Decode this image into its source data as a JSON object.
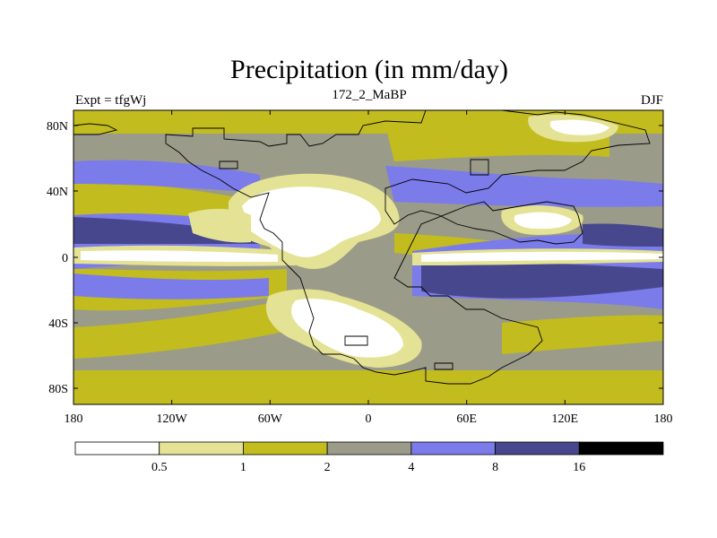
{
  "title": "Precipitation (in mm/day)",
  "left_label": "Expt = tfgWj",
  "center_label": "172_2_MaBP",
  "right_label": "DJF",
  "lat_ticks": [
    "80N",
    "40N",
    "0",
    "40S",
    "80S"
  ],
  "lon_ticks": [
    "180",
    "120W",
    "60W",
    "0",
    "60E",
    "120E",
    "180"
  ],
  "legend": {
    "labels": [
      "0.5",
      "1",
      "2",
      "4",
      "8",
      "16"
    ],
    "colors": [
      "#ffffff",
      "#e4e294",
      "#c2bc1e",
      "#9b9b8a",
      "#7b7bea",
      "#47478e",
      "#000000"
    ]
  },
  "palette": {
    "white": "#ffffff",
    "pale_yellow": "#e4e294",
    "olive": "#c2bc1e",
    "grey": "#9b9b8a",
    "blue": "#7b7bea",
    "dark_blue": "#47478e"
  }
}
